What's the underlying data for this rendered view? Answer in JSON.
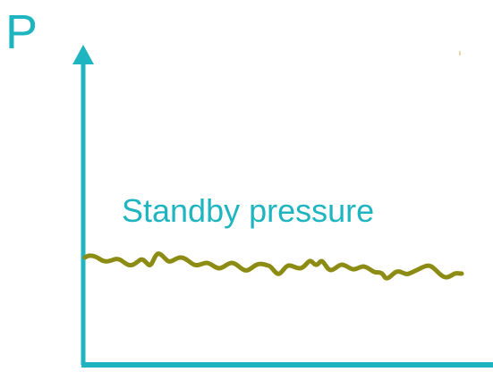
{
  "diagram": {
    "y_axis_label": "P",
    "curve_label": "Standby pressure"
  },
  "colors": {
    "axis": "#1fb5c0",
    "label": "#1fb5c0",
    "curve": "#8c8c14",
    "background": "#ffffff"
  }
}
